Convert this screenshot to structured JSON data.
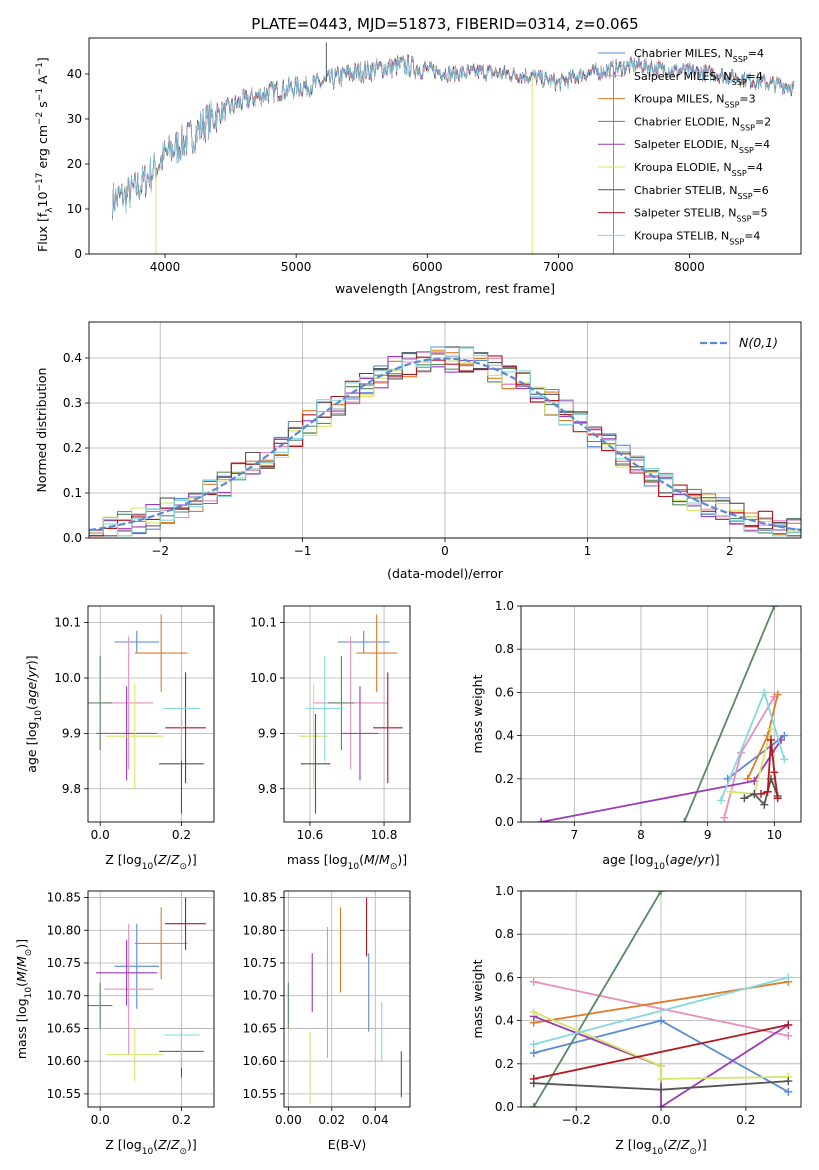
{
  "figure_title": "PLATE=0443, MJD=51873, FIBERID=0314, z=0.065",
  "colors": {
    "chabrier_miles": "#5b8ad6",
    "salpeter_miles": "#e98fbf",
    "kroupa_miles": "#e07b2a",
    "chabrier_elodie": "#5a8a64",
    "salpeter_elodie": "#9b39b8",
    "kroupa_elodie": "#d6e46a",
    "chabrier_stelib": "#555555",
    "salpeter_stelib": "#b5171e",
    "kroupa_stelib": "#86d7de",
    "normal_curve": "#5b8ad6"
  },
  "chart_data": [
    {
      "id": "spectrum",
      "type": "line",
      "title": "PLATE=0443, MJD=51873, FIBERID=0314, z=0.065",
      "xlabel": "wavelength [Angstrom, rest frame]",
      "ylabel": "Flux [f_λ10^-17 erg cm^-2 s^-1 A^-1]",
      "xlim": [
        3420,
        8850
      ],
      "ylim": [
        0,
        48
      ],
      "xticks": [
        4000,
        5000,
        6000,
        7000,
        8000
      ],
      "yticks": [
        0,
        10,
        20,
        30,
        40
      ],
      "grid": false,
      "legend_position": "top-right",
      "continuum": {
        "x": [
          3600,
          3700,
          3800,
          3900,
          4000,
          4100,
          4200,
          4300,
          4400,
          4600,
          4800,
          5000,
          5200,
          5400,
          5600,
          5800,
          6000,
          6200,
          6400,
          6600,
          6800,
          7000,
          7200,
          7400,
          7600,
          7800,
          8000,
          8200,
          8400,
          8600,
          8800
        ],
        "y": [
          12,
          13,
          15,
          18,
          22,
          24,
          26,
          29,
          31,
          34,
          36,
          37,
          38,
          40,
          41,
          42,
          41,
          40,
          40.5,
          40,
          39.5,
          38,
          40,
          41,
          42,
          41,
          40.5,
          40,
          39,
          38,
          37
        ]
      },
      "dips": [
        {
          "x": 3930,
          "y": 0
        },
        {
          "x": 5230,
          "y": 47
        },
        {
          "x": 6800,
          "y": 0
        },
        {
          "x": 7420,
          "y": 0
        }
      ],
      "series": [
        {
          "name": "Chabrier MILES, N_SSP=4",
          "label_main": "Chabrier MILES, N",
          "label_sub": "SSP",
          "label_end": "=4",
          "color_key": "chabrier_miles"
        },
        {
          "name": "Salpeter MILES, N_SSP=4",
          "label_main": "Salpeter MILES, N",
          "label_sub": "SSP",
          "label_end": "=4",
          "color_key": "salpeter_miles"
        },
        {
          "name": "Kroupa MILES, N_SSP=3",
          "label_main": "Kroupa MILES, N",
          "label_sub": "SSP",
          "label_end": "=3",
          "color_key": "kroupa_miles"
        },
        {
          "name": "Chabrier ELODIE, N_SSP=2",
          "label_main": "Chabrier ELODIE, N",
          "label_sub": "SSP",
          "label_end": "=2",
          "color_key": "chabrier_elodie"
        },
        {
          "name": "Salpeter ELODIE, N_SSP=4",
          "label_main": "Salpeter ELODIE, N",
          "label_sub": "SSP",
          "label_end": "=4",
          "color_key": "salpeter_elodie"
        },
        {
          "name": "Kroupa ELODIE, N_SSP=4",
          "label_main": "Kroupa ELODIE, N",
          "label_sub": "SSP",
          "label_end": "=4",
          "color_key": "kroupa_elodie"
        },
        {
          "name": "Chabrier STELIB, N_SSP=6",
          "label_main": "Chabrier STELIB, N",
          "label_sub": "SSP",
          "label_end": "=6",
          "color_key": "chabrier_stelib"
        },
        {
          "name": "Salpeter STELIB, N_SSP=5",
          "label_main": "Salpeter STELIB, N",
          "label_sub": "SSP",
          "label_end": "=5",
          "color_key": "salpeter_stelib"
        },
        {
          "name": "Kroupa STELIB, N_SSP=4",
          "label_main": "Kroupa STELIB, N",
          "label_sub": "SSP",
          "label_end": "=4",
          "color_key": "kroupa_stelib"
        }
      ]
    },
    {
      "id": "residuals",
      "type": "histogram",
      "xlabel": "(data-model)/error",
      "ylabel": "Normed distribution",
      "xlim": [
        -2.5,
        2.5
      ],
      "ylim": [
        0,
        0.48
      ],
      "xticks": [
        -2,
        -1,
        0,
        1,
        2
      ],
      "yticks": [
        0.0,
        0.1,
        0.2,
        0.3,
        0.4
      ],
      "grid": true,
      "legend_position": "top-right",
      "bin_width": 0.1,
      "normal_label": "N(0,1)",
      "normal_mu": 0,
      "normal_sigma": 1
    },
    {
      "id": "age_vs_Z",
      "type": "errorbar",
      "xlabel": "Z [log10(Z/Z☉)]",
      "ylabel": "age [log10(age/yr)]",
      "xlim": [
        -0.03,
        0.28
      ],
      "ylim": [
        9.74,
        10.13
      ],
      "xticks": [
        0.0,
        0.2
      ],
      "yticks": [
        9.8,
        9.9,
        10.0,
        10.1
      ],
      "grid": true,
      "points": [
        {
          "color_key": "chabrier_miles",
          "x": 0.09,
          "xerr": 0.055,
          "y": 10.065,
          "yerr": 0.02
        },
        {
          "color_key": "salpeter_miles",
          "x": 0.07,
          "xerr": 0.06,
          "y": 9.955,
          "yerr": 0.12
        },
        {
          "color_key": "kroupa_miles",
          "x": 0.15,
          "xerr": 0.065,
          "y": 10.045,
          "yerr": 0.07
        },
        {
          "color_key": "chabrier_elodie",
          "x": 0.0,
          "xerr": 0.03,
          "y": 9.955,
          "yerr": 0.085
        },
        {
          "color_key": "salpeter_elodie",
          "x": 0.065,
          "xerr": 0.075,
          "y": 9.9,
          "yerr": 0.085
        },
        {
          "color_key": "kroupa_elodie",
          "x": 0.085,
          "xerr": 0.07,
          "y": 9.895,
          "yerr": 0.095
        },
        {
          "color_key": "chabrier_stelib",
          "x": 0.2,
          "xerr": 0.055,
          "y": 9.845,
          "yerr": 0.09
        },
        {
          "color_key": "salpeter_stelib",
          "x": 0.21,
          "xerr": 0.05,
          "y": 9.91,
          "yerr": 0.1
        },
        {
          "color_key": "kroupa_stelib",
          "x": 0.2,
          "xerr": 0.045,
          "y": 9.945,
          "yerr": 0.095
        }
      ]
    },
    {
      "id": "age_vs_mass",
      "type": "errorbar",
      "xlabel": "mass [log10(M/M☉)]",
      "ylabel": "",
      "xlim": [
        10.53,
        10.87
      ],
      "ylim": [
        9.74,
        10.13
      ],
      "xticks": [
        10.6,
        10.8
      ],
      "yticks": [
        9.8,
        9.9,
        10.0,
        10.1
      ],
      "grid": true,
      "points": [
        {
          "color_key": "chabrier_miles",
          "x": 10.745,
          "xerr": 0.07,
          "y": 10.065,
          "yerr": 0.02
        },
        {
          "color_key": "salpeter_miles",
          "x": 10.71,
          "xerr": 0.1,
          "y": 9.955,
          "yerr": 0.12
        },
        {
          "color_key": "kroupa_miles",
          "x": 10.78,
          "xerr": 0.055,
          "y": 10.045,
          "yerr": 0.07
        },
        {
          "color_key": "chabrier_elodie",
          "x": 10.685,
          "xerr": 0.035,
          "y": 9.955,
          "yerr": 0.085
        },
        {
          "color_key": "salpeter_elodie",
          "x": 10.735,
          "xerr": 0.05,
          "y": 9.9,
          "yerr": 0.085
        },
        {
          "color_key": "kroupa_elodie",
          "x": 10.61,
          "xerr": 0.04,
          "y": 9.895,
          "yerr": 0.095
        },
        {
          "color_key": "chabrier_stelib",
          "x": 10.615,
          "xerr": 0.04,
          "y": 9.845,
          "yerr": 0.09
        },
        {
          "color_key": "salpeter_stelib",
          "x": 10.81,
          "xerr": 0.04,
          "y": 9.91,
          "yerr": 0.1
        },
        {
          "color_key": "kroupa_stelib",
          "x": 10.64,
          "xerr": 0.05,
          "y": 9.945,
          "yerr": 0.095
        }
      ]
    },
    {
      "id": "weight_vs_age",
      "type": "line",
      "xlabel": "age [log10(age/yr)]",
      "ylabel": "mass weight",
      "xlim": [
        6.2,
        10.4
      ],
      "ylim": [
        0,
        1.0
      ],
      "xticks": [
        7,
        8,
        9,
        10
      ],
      "yticks": [
        0.0,
        0.2,
        0.4,
        0.6,
        0.8,
        1.0
      ],
      "grid": true,
      "series": [
        {
          "color_key": "chabrier_miles",
          "x": [
            9.3,
            10.15
          ],
          "y": [
            0.2,
            0.4
          ]
        },
        {
          "color_key": "salpeter_miles",
          "x": [
            9.25,
            9.5,
            10.0
          ],
          "y": [
            0.02,
            0.32,
            0.58
          ]
        },
        {
          "color_key": "kroupa_miles",
          "x": [
            9.6,
            9.9,
            10.05
          ],
          "y": [
            0.2,
            0.4,
            0.59
          ]
        },
        {
          "color_key": "chabrier_elodie",
          "x": [
            8.65,
            10.0
          ],
          "y": [
            0.0,
            1.0
          ]
        },
        {
          "color_key": "salpeter_elodie",
          "x": [
            6.5,
            9.7,
            10.1
          ],
          "y": [
            0.0,
            0.19,
            0.38
          ]
        },
        {
          "color_key": "kroupa_elodie",
          "x": [
            9.35,
            9.7,
            9.95
          ],
          "y": [
            0.14,
            0.13,
            0.43
          ]
        },
        {
          "color_key": "chabrier_stelib",
          "x": [
            9.55,
            9.7,
            9.85,
            9.95,
            10.05
          ],
          "y": [
            0.11,
            0.13,
            0.08,
            0.2,
            0.12
          ]
        },
        {
          "color_key": "salpeter_stelib",
          "x": [
            9.8,
            9.9,
            9.95,
            10.0,
            10.05
          ],
          "y": [
            0.13,
            0.14,
            0.38,
            0.23,
            0.11
          ]
        },
        {
          "color_key": "kroupa_stelib",
          "x": [
            9.2,
            9.85,
            10.15
          ],
          "y": [
            0.1,
            0.6,
            0.29
          ]
        }
      ]
    },
    {
      "id": "mass_vs_Z",
      "type": "errorbar",
      "xlabel": "Z [log10(Z/Z☉)]",
      "ylabel": "mass [log10(M/M☉)]",
      "xlim": [
        -0.03,
        0.28
      ],
      "ylim": [
        10.53,
        10.86
      ],
      "xticks": [
        0.0,
        0.2
      ],
      "yticks": [
        10.55,
        10.6,
        10.65,
        10.7,
        10.75,
        10.8,
        10.85
      ],
      "grid": true,
      "points": [
        {
          "color_key": "chabrier_miles",
          "x": 0.09,
          "xerr": 0.055,
          "y": 10.745,
          "yerr": 0.065
        },
        {
          "color_key": "salpeter_miles",
          "x": 0.07,
          "xerr": 0.06,
          "y": 10.71,
          "yerr": 0.1
        },
        {
          "color_key": "kroupa_miles",
          "x": 0.15,
          "xerr": 0.065,
          "y": 10.78,
          "yerr": 0.055
        },
        {
          "color_key": "chabrier_elodie",
          "x": 0.0,
          "xerr": 0.03,
          "y": 10.685,
          "yerr": 0.035
        },
        {
          "color_key": "salpeter_elodie",
          "x": 0.065,
          "xerr": 0.075,
          "y": 10.735,
          "yerr": 0.05
        },
        {
          "color_key": "kroupa_elodie",
          "x": 0.085,
          "xerr": 0.07,
          "y": 10.61,
          "yerr": 0.04
        },
        {
          "color_key": "chabrier_stelib",
          "x": 0.2,
          "xerr": 0.055,
          "y": 10.615,
          "yerr": 0.04
        },
        {
          "color_key": "salpeter_stelib",
          "x": 0.21,
          "xerr": 0.05,
          "y": 10.81,
          "yerr": 0.04
        },
        {
          "color_key": "kroupa_stelib",
          "x": 0.2,
          "xerr": 0.045,
          "y": 10.64,
          "yerr": 0.05
        }
      ]
    },
    {
      "id": "mass_vs_ebv",
      "type": "errorbar",
      "xlabel": "E(B-V)",
      "ylabel": "",
      "xlim": [
        -0.002,
        0.056
      ],
      "ylim": [
        10.53,
        10.86
      ],
      "xticks": [
        0.0,
        0.02,
        0.04
      ],
      "yticks": [
        10.55,
        10.6,
        10.65,
        10.7,
        10.75,
        10.8,
        10.85
      ],
      "grid": true,
      "points": [
        {
          "color_key": "chabrier_miles",
          "x": 0.037,
          "xerr": 0,
          "y": 10.705,
          "yerr": 0.06
        },
        {
          "color_key": "salpeter_miles",
          "x": 0.018,
          "xerr": 0,
          "y": 10.705,
          "yerr": 0.1
        },
        {
          "color_key": "kroupa_miles",
          "x": 0.024,
          "xerr": 0,
          "y": 10.77,
          "yerr": 0.065
        },
        {
          "color_key": "chabrier_elodie",
          "x": 0.0,
          "xerr": 0,
          "y": 10.685,
          "yerr": 0.035
        },
        {
          "color_key": "salpeter_elodie",
          "x": 0.011,
          "xerr": 0,
          "y": 10.72,
          "yerr": 0.045
        },
        {
          "color_key": "kroupa_elodie",
          "x": 0.01,
          "xerr": 0,
          "y": 10.59,
          "yerr": 0.055
        },
        {
          "color_key": "chabrier_stelib",
          "x": 0.052,
          "xerr": 0,
          "y": 10.58,
          "yerr": 0.035
        },
        {
          "color_key": "salpeter_stelib",
          "x": 0.036,
          "xerr": 0,
          "y": 10.805,
          "yerr": 0.045
        },
        {
          "color_key": "kroupa_stelib",
          "x": 0.043,
          "xerr": 0,
          "y": 10.645,
          "yerr": 0.045
        }
      ]
    },
    {
      "id": "weight_vs_Z",
      "type": "line",
      "xlabel": "Z [log10(Z/Z☉)]",
      "ylabel": "mass weight",
      "xlim": [
        -0.33,
        0.33
      ],
      "ylim": [
        0,
        1.0
      ],
      "xticks": [
        -0.2,
        0.0,
        0.2
      ],
      "yticks": [
        0.0,
        0.2,
        0.4,
        0.6,
        0.8,
        1.0
      ],
      "grid": true,
      "series": [
        {
          "color_key": "chabrier_miles",
          "x": [
            -0.3,
            0.0,
            0.3
          ],
          "y": [
            0.25,
            0.4,
            0.07
          ]
        },
        {
          "color_key": "salpeter_miles",
          "x": [
            -0.3,
            0.3
          ],
          "y": [
            0.58,
            0.33
          ]
        },
        {
          "color_key": "kroupa_miles",
          "x": [
            -0.3,
            0.3
          ],
          "y": [
            0.39,
            0.58
          ]
        },
        {
          "color_key": "chabrier_elodie",
          "x": [
            -0.3,
            0.0
          ],
          "y": [
            0.0,
            1.0
          ]
        },
        {
          "color_key": "salpeter_elodie",
          "x": [
            -0.3,
            0.0,
            0.0,
            0.3
          ],
          "y": [
            0.42,
            0.19,
            0.0,
            0.38
          ]
        },
        {
          "color_key": "kroupa_elodie",
          "x": [
            -0.3,
            0.0,
            0.0,
            0.3
          ],
          "y": [
            0.44,
            0.19,
            0.13,
            0.14
          ]
        },
        {
          "color_key": "chabrier_stelib",
          "x": [
            -0.3,
            0.0,
            0.3
          ],
          "y": [
            0.11,
            0.08,
            0.12
          ]
        },
        {
          "color_key": "salpeter_stelib",
          "x": [
            -0.3,
            0.3
          ],
          "y": [
            0.13,
            0.38
          ]
        },
        {
          "color_key": "kroupa_stelib",
          "x": [
            -0.3,
            0.3
          ],
          "y": [
            0.29,
            0.6
          ]
        }
      ]
    }
  ]
}
